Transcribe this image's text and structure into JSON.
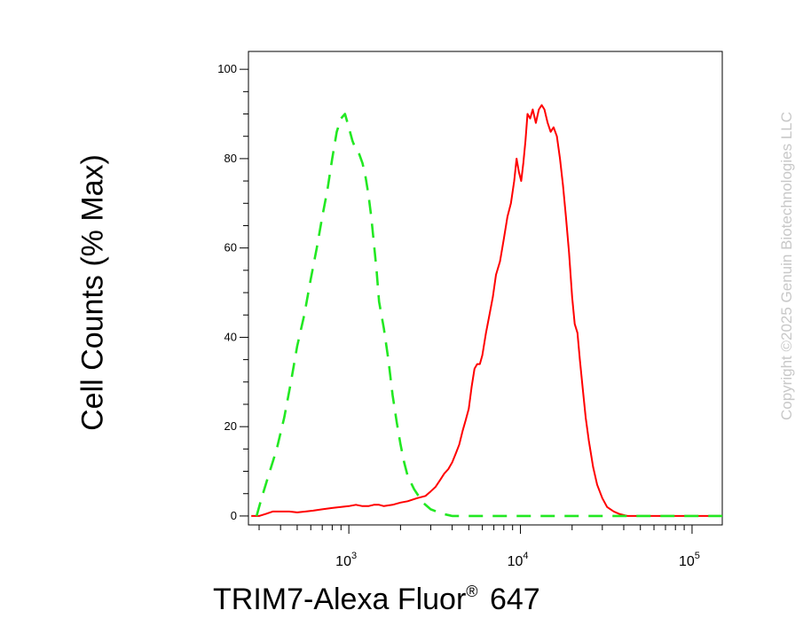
{
  "chart_data": {
    "type": "line",
    "xlabel_main": "TRIM7-Alexa Fluor",
    "xlabel_reg": "®",
    "xlabel_suffix": " 647",
    "ylabel": "Cell Counts (% Max)",
    "xscale": "log",
    "xlim": [
      260,
      150000
    ],
    "ylim": [
      -2,
      104
    ],
    "yticks": [
      0,
      20,
      40,
      60,
      80,
      100
    ],
    "xtick_labels": [
      {
        "base": "10",
        "exp": "3",
        "value": 1000
      },
      {
        "base": "10",
        "exp": "4",
        "value": 10000
      },
      {
        "base": "10",
        "exp": "5",
        "value": 100000
      }
    ],
    "series": [
      {
        "color": "#ff0000",
        "style": "solid",
        "points": [
          [
            270,
            0
          ],
          [
            300,
            0
          ],
          [
            330,
            0.5
          ],
          [
            360,
            1
          ],
          [
            400,
            1
          ],
          [
            450,
            1
          ],
          [
            500,
            0.8
          ],
          [
            560,
            1
          ],
          [
            620,
            1.2
          ],
          [
            700,
            1.5
          ],
          [
            800,
            1.8
          ],
          [
            900,
            2
          ],
          [
            1000,
            2.2
          ],
          [
            1100,
            2.5
          ],
          [
            1200,
            2.2
          ],
          [
            1300,
            2.2
          ],
          [
            1400,
            2.5
          ],
          [
            1500,
            2.5
          ],
          [
            1600,
            2.2
          ],
          [
            1800,
            2.5
          ],
          [
            2000,
            3
          ],
          [
            2200,
            3.3
          ],
          [
            2500,
            4
          ],
          [
            2800,
            4.5
          ],
          [
            3000,
            5.5
          ],
          [
            3200,
            6.5
          ],
          [
            3400,
            8
          ],
          [
            3600,
            9.5
          ],
          [
            3800,
            10.5
          ],
          [
            4000,
            12
          ],
          [
            4200,
            14
          ],
          [
            4400,
            16
          ],
          [
            4600,
            19
          ],
          [
            4800,
            21.5
          ],
          [
            5000,
            24
          ],
          [
            5200,
            29
          ],
          [
            5400,
            33
          ],
          [
            5600,
            34
          ],
          [
            5800,
            34
          ],
          [
            6000,
            36
          ],
          [
            6300,
            41
          ],
          [
            6600,
            45
          ],
          [
            6900,
            49
          ],
          [
            7200,
            54
          ],
          [
            7600,
            57
          ],
          [
            8000,
            62
          ],
          [
            8400,
            67
          ],
          [
            8800,
            70
          ],
          [
            9200,
            75
          ],
          [
            9500,
            80
          ],
          [
            9800,
            77
          ],
          [
            10100,
            75
          ],
          [
            10400,
            79
          ],
          [
            10700,
            84
          ],
          [
            11000,
            90
          ],
          [
            11400,
            89
          ],
          [
            11800,
            91
          ],
          [
            12300,
            88
          ],
          [
            12800,
            91
          ],
          [
            13300,
            92
          ],
          [
            13800,
            91
          ],
          [
            14400,
            88
          ],
          [
            15000,
            86
          ],
          [
            15600,
            87
          ],
          [
            16300,
            85
          ],
          [
            17000,
            80
          ],
          [
            17700,
            74
          ],
          [
            18400,
            67
          ],
          [
            19200,
            59
          ],
          [
            20000,
            49
          ],
          [
            20700,
            43
          ],
          [
            21500,
            41
          ],
          [
            22200,
            35
          ],
          [
            23000,
            29
          ],
          [
            24000,
            22
          ],
          [
            25000,
            17
          ],
          [
            26500,
            11
          ],
          [
            28000,
            7
          ],
          [
            30000,
            4
          ],
          [
            32000,
            2
          ],
          [
            35000,
            1
          ],
          [
            38000,
            0.4
          ],
          [
            42000,
            0
          ],
          [
            60000,
            0
          ],
          [
            100000,
            0
          ],
          [
            150000,
            0
          ]
        ]
      },
      {
        "color": "#22e822",
        "style": "dashed",
        "points": [
          [
            290,
            0
          ],
          [
            310,
            4
          ],
          [
            340,
            9
          ],
          [
            380,
            15
          ],
          [
            420,
            22
          ],
          [
            460,
            30
          ],
          [
            500,
            38
          ],
          [
            550,
            45
          ],
          [
            600,
            53
          ],
          [
            650,
            60
          ],
          [
            700,
            67
          ],
          [
            750,
            73
          ],
          [
            800,
            80
          ],
          [
            850,
            86
          ],
          [
            900,
            89
          ],
          [
            950,
            90
          ],
          [
            1000,
            87
          ],
          [
            1050,
            84
          ],
          [
            1100,
            82
          ],
          [
            1150,
            81
          ],
          [
            1200,
            79
          ],
          [
            1250,
            76
          ],
          [
            1300,
            72
          ],
          [
            1350,
            67
          ],
          [
            1400,
            61
          ],
          [
            1450,
            55
          ],
          [
            1500,
            48
          ],
          [
            1600,
            42
          ],
          [
            1700,
            35
          ],
          [
            1800,
            27
          ],
          [
            1900,
            21
          ],
          [
            2000,
            16
          ],
          [
            2100,
            12
          ],
          [
            2200,
            9
          ],
          [
            2400,
            6
          ],
          [
            2700,
            3
          ],
          [
            3000,
            1.5
          ],
          [
            3500,
            0.5
          ],
          [
            4000,
            0
          ],
          [
            10000,
            0
          ],
          [
            50000,
            0
          ],
          [
            150000,
            0
          ]
        ]
      }
    ]
  },
  "watermark": "Copyright ©2025 Genuin Biotechnologies LLC"
}
